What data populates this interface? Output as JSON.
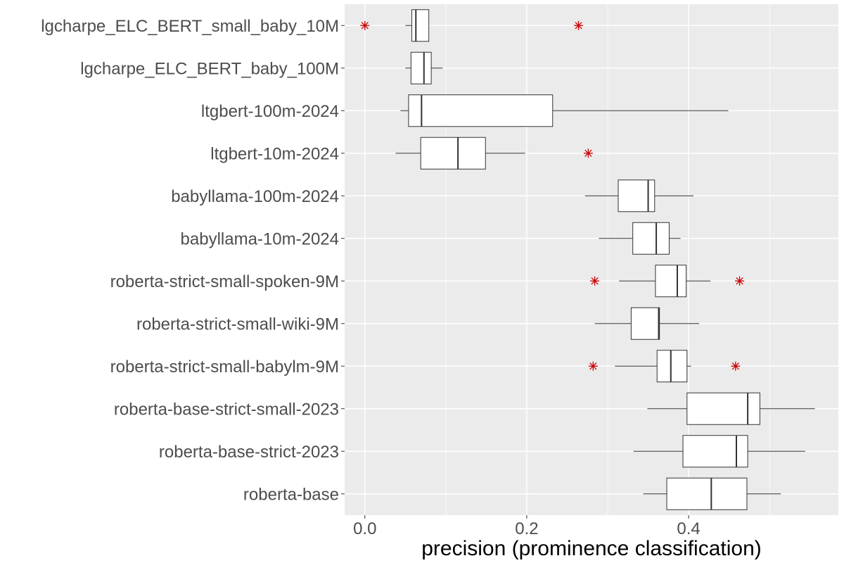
{
  "chart_data": {
    "type": "boxplot",
    "orientation": "horizontal",
    "title": "",
    "xlabel": "precision (prominence classification)",
    "ylabel": "",
    "xlim": [
      -0.025,
      0.585
    ],
    "x_ticks": [
      0.0,
      0.2,
      0.4
    ],
    "x_tick_labels": [
      "0.0",
      "0.2",
      "0.4"
    ],
    "grid": true,
    "colors": {
      "panel_bg": "#ebebeb",
      "grid": "#ffffff",
      "box_fill": "#ffffff",
      "box_stroke": "#333333",
      "outlier": "#cc0000"
    },
    "categories": [
      "lgcharpe_ELC_BERT_small_baby_10M",
      "lgcharpe_ELC_BERT_baby_100M",
      "ltgbert-100m-2024",
      "ltgbert-10m-2024",
      "babyllama-100m-2024",
      "babyllama-10m-2024",
      "roberta-strict-small-spoken-9M",
      "roberta-strict-small-wiki-9M",
      "roberta-strict-small-babylm-9M",
      "roberta-base-strict-small-2023",
      "roberta-base-strict-2023",
      "roberta-base"
    ],
    "boxes": [
      {
        "whisker_low": 0.05,
        "q1": 0.058,
        "median": 0.063,
        "q3": 0.079,
        "whisker_high": 0.079,
        "outliers": [
          0.0,
          0.264
        ]
      },
      {
        "whisker_low": 0.05,
        "q1": 0.057,
        "median": 0.073,
        "q3": 0.082,
        "whisker_high": 0.096,
        "outliers": []
      },
      {
        "whisker_low": 0.044,
        "q1": 0.054,
        "median": 0.07,
        "q3": 0.232,
        "whisker_high": 0.449,
        "outliers": []
      },
      {
        "whisker_low": 0.038,
        "q1": 0.069,
        "median": 0.115,
        "q3": 0.149,
        "whisker_high": 0.198,
        "outliers": [
          0.276
        ]
      },
      {
        "whisker_low": 0.272,
        "q1": 0.313,
        "median": 0.35,
        "q3": 0.358,
        "whisker_high": 0.406,
        "outliers": []
      },
      {
        "whisker_low": 0.289,
        "q1": 0.331,
        "median": 0.36,
        "q3": 0.376,
        "whisker_high": 0.39,
        "outliers": []
      },
      {
        "whisker_low": 0.314,
        "q1": 0.359,
        "median": 0.386,
        "q3": 0.397,
        "whisker_high": 0.427,
        "outliers": [
          0.284,
          0.463
        ]
      },
      {
        "whisker_low": 0.284,
        "q1": 0.329,
        "median": 0.363,
        "q3": 0.364,
        "whisker_high": 0.413,
        "outliers": []
      },
      {
        "whisker_low": 0.309,
        "q1": 0.361,
        "median": 0.378,
        "q3": 0.398,
        "whisker_high": 0.403,
        "outliers": [
          0.282,
          0.458
        ]
      },
      {
        "whisker_low": 0.349,
        "q1": 0.398,
        "median": 0.473,
        "q3": 0.488,
        "whisker_high": 0.556,
        "outliers": []
      },
      {
        "whisker_low": 0.332,
        "q1": 0.393,
        "median": 0.459,
        "q3": 0.473,
        "whisker_high": 0.544,
        "outliers": []
      },
      {
        "whisker_low": 0.344,
        "q1": 0.373,
        "median": 0.428,
        "q3": 0.472,
        "whisker_high": 0.514,
        "outliers": []
      }
    ]
  }
}
